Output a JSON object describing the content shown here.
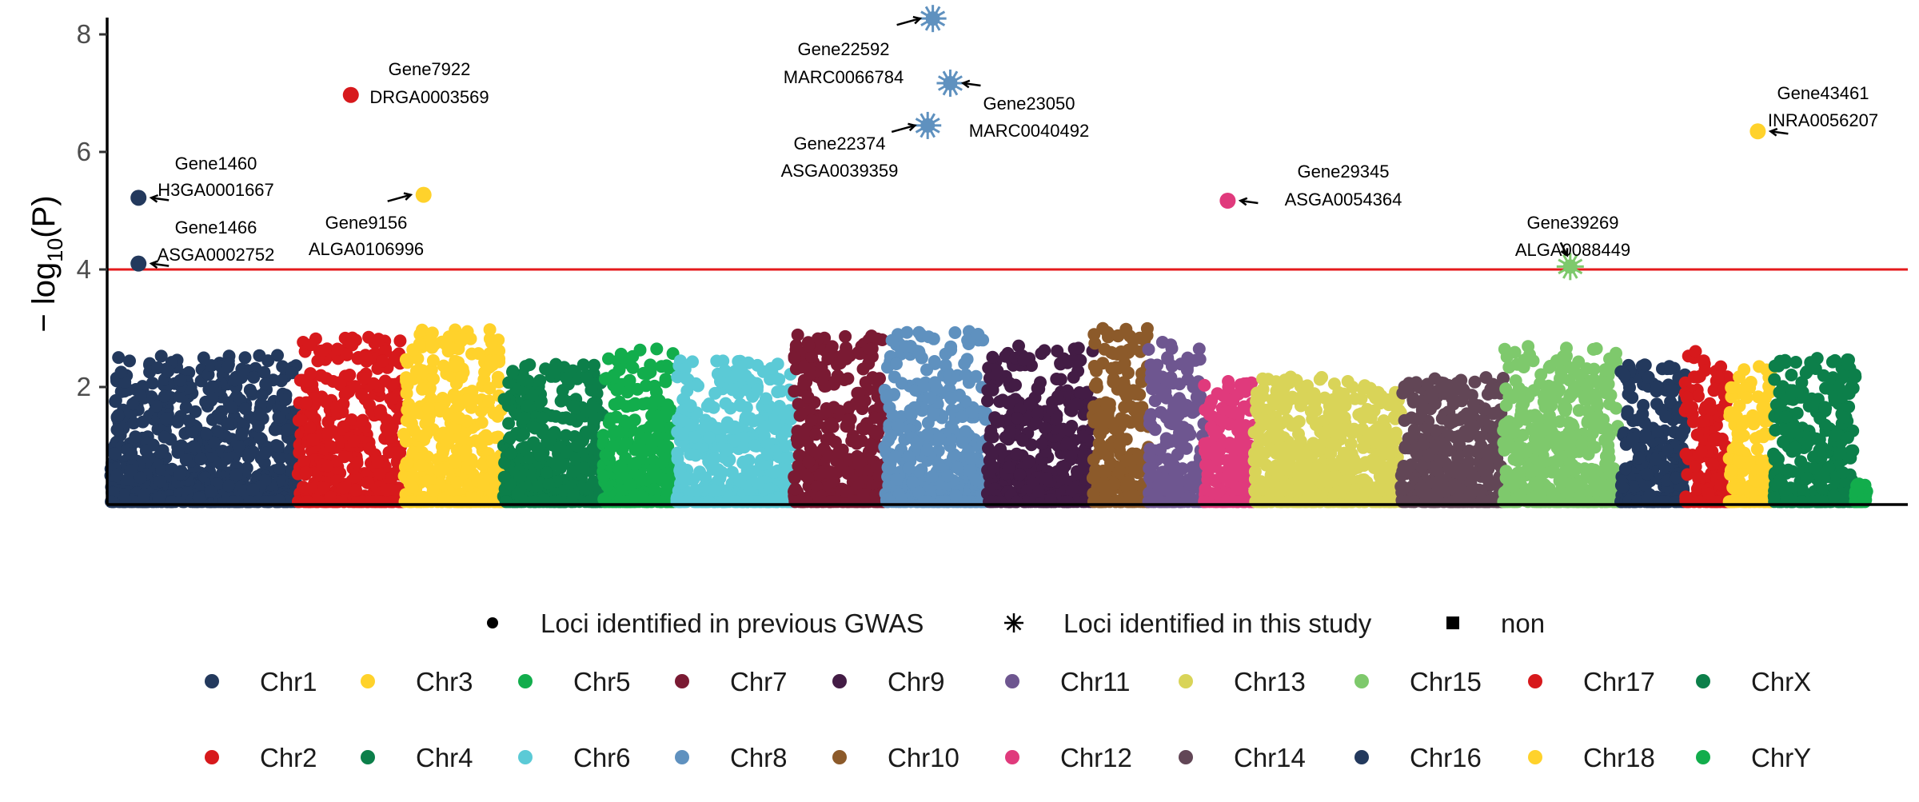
{
  "chart_data": {
    "type": "scatter",
    "title": "",
    "xlabel": "",
    "ylabel": "−log10(P)",
    "ylabel_parts": {
      "prefix": "− log",
      "sub": "10",
      "suffix": "(P)"
    },
    "ylim": [
      0,
      8.6
    ],
    "yticks": [
      2,
      4,
      6,
      8
    ],
    "threshold": {
      "value": 4,
      "color": "#e41a1c"
    },
    "grid": false,
    "chromosomes": [
      {
        "name": "Chr1",
        "order": 1,
        "color": "#23395d",
        "weight": 6.4,
        "max": 2.55
      },
      {
        "name": "Chr2",
        "order": 2,
        "color": "#d7191c",
        "weight": 3.6,
        "max": 2.85
      },
      {
        "name": "Chr3",
        "order": 3,
        "color": "#ffd22b",
        "weight": 3.4,
        "max": 3.0
      },
      {
        "name": "Chr4",
        "order": 4,
        "color": "#0c7f4a",
        "weight": 3.4,
        "max": 2.4
      },
      {
        "name": "Chr5",
        "order": 5,
        "color": "#12ad4c",
        "weight": 2.5,
        "max": 2.65
      },
      {
        "name": "Chr6",
        "order": 6,
        "color": "#5bcad6",
        "weight": 4.0,
        "max": 2.45
      },
      {
        "name": "Chr7",
        "order": 7,
        "color": "#7a1a33",
        "weight": 3.1,
        "max": 2.9
      },
      {
        "name": "Chr8",
        "order": 8,
        "color": "#5f91bf",
        "weight": 3.5,
        "max": 3.0
      },
      {
        "name": "Chr9",
        "order": 9,
        "color": "#431c45",
        "weight": 3.6,
        "max": 2.7
      },
      {
        "name": "Chr10",
        "order": 10,
        "color": "#8c5a2a",
        "weight": 1.9,
        "max": 3.0
      },
      {
        "name": "Chr11",
        "order": 11,
        "color": "#6e5690",
        "weight": 1.9,
        "max": 2.8
      },
      {
        "name": "Chr12",
        "order": 12,
        "color": "#e03a7c",
        "weight": 1.7,
        "max": 2.1
      },
      {
        "name": "Chr13",
        "order": 13,
        "color": "#d9d458",
        "weight": 5.0,
        "max": 2.2
      },
      {
        "name": "Chr14",
        "order": 14,
        "color": "#624656",
        "weight": 3.5,
        "max": 2.2
      },
      {
        "name": "Chr15",
        "order": 15,
        "color": "#7ec96c",
        "weight": 4.0,
        "max": 2.7
      },
      {
        "name": "Chr16",
        "order": 16,
        "color": "#23395d",
        "weight": 2.2,
        "max": 2.4
      },
      {
        "name": "Chr17",
        "order": 17,
        "color": "#d7191c",
        "weight": 1.5,
        "max": 2.65
      },
      {
        "name": "Chr18",
        "order": 18,
        "color": "#ffd22b",
        "weight": 1.5,
        "max": 2.35
      },
      {
        "name": "ChrX",
        "order": 19,
        "color": "#0c7f4a",
        "weight": 2.8,
        "max": 2.5
      },
      {
        "name": "ChrY",
        "order": 20,
        "color": "#12ad4c",
        "weight": 0.4,
        "max": 0.35
      }
    ],
    "annotations": [
      {
        "gene": "Gene1460",
        "snp": "H3GA0001667",
        "chr": "Chr1",
        "pos": 0.15,
        "y": 5.22,
        "shape": "circle"
      },
      {
        "gene": "Gene1466",
        "snp": "ASGA0002752",
        "chr": "Chr1",
        "pos": 0.15,
        "y": 4.1,
        "shape": "circle"
      },
      {
        "gene": "Gene7922",
        "snp": "DRGA0003569",
        "chr": "Chr2",
        "pos": 0.5,
        "y": 6.97,
        "shape": "circle"
      },
      {
        "gene": "Gene9156",
        "snp": "ALGA0106996",
        "chr": "Chr3",
        "pos": 0.2,
        "y": 5.27,
        "shape": "circle"
      },
      {
        "gene": "Gene22592",
        "snp": "MARC0066784",
        "chr": "Chr8",
        "pos": 0.47,
        "y": 8.27,
        "shape": "star"
      },
      {
        "gene": "Gene23050",
        "snp": "MARC0040492",
        "chr": "Chr8",
        "pos": 0.64,
        "y": 7.17,
        "shape": "star"
      },
      {
        "gene": "Gene22374",
        "snp": "ASGA0039359",
        "chr": "Chr8",
        "pos": 0.42,
        "y": 6.45,
        "shape": "star"
      },
      {
        "gene": "Gene29345",
        "snp": "ASGA0054364",
        "chr": "Chr12",
        "pos": 0.47,
        "y": 5.17,
        "shape": "circle"
      },
      {
        "gene": "Gene39269",
        "snp": "ALGA0088449",
        "chr": "Chr15",
        "pos": 0.57,
        "y": 4.05,
        "shape": "star"
      },
      {
        "gene": "Gene43461",
        "snp": "INRA0056207",
        "chr": "Chr18",
        "pos": 0.65,
        "y": 6.35,
        "shape": "circle"
      }
    ],
    "legend_position": "bottom",
    "legend_shapes": [
      {
        "label": "Loci identified in previous GWAS",
        "shape": "circle"
      },
      {
        "label": "Loci identified in this study",
        "shape": "asterisk"
      },
      {
        "label": "non",
        "shape": "square"
      }
    ],
    "legend_color_columns": [
      [
        "Chr1",
        "Chr2"
      ],
      [
        "Chr3",
        "Chr4"
      ],
      [
        "Chr5",
        "Chr6"
      ],
      [
        "Chr7",
        "Chr8"
      ],
      [
        "Chr9",
        "Chr10"
      ],
      [
        "Chr11",
        "Chr12"
      ],
      [
        "Chr13",
        "Chr14"
      ],
      [
        "Chr15",
        "Chr16"
      ],
      [
        "Chr17",
        "Chr18"
      ],
      [
        "ChrX",
        "ChrY"
      ]
    ]
  }
}
